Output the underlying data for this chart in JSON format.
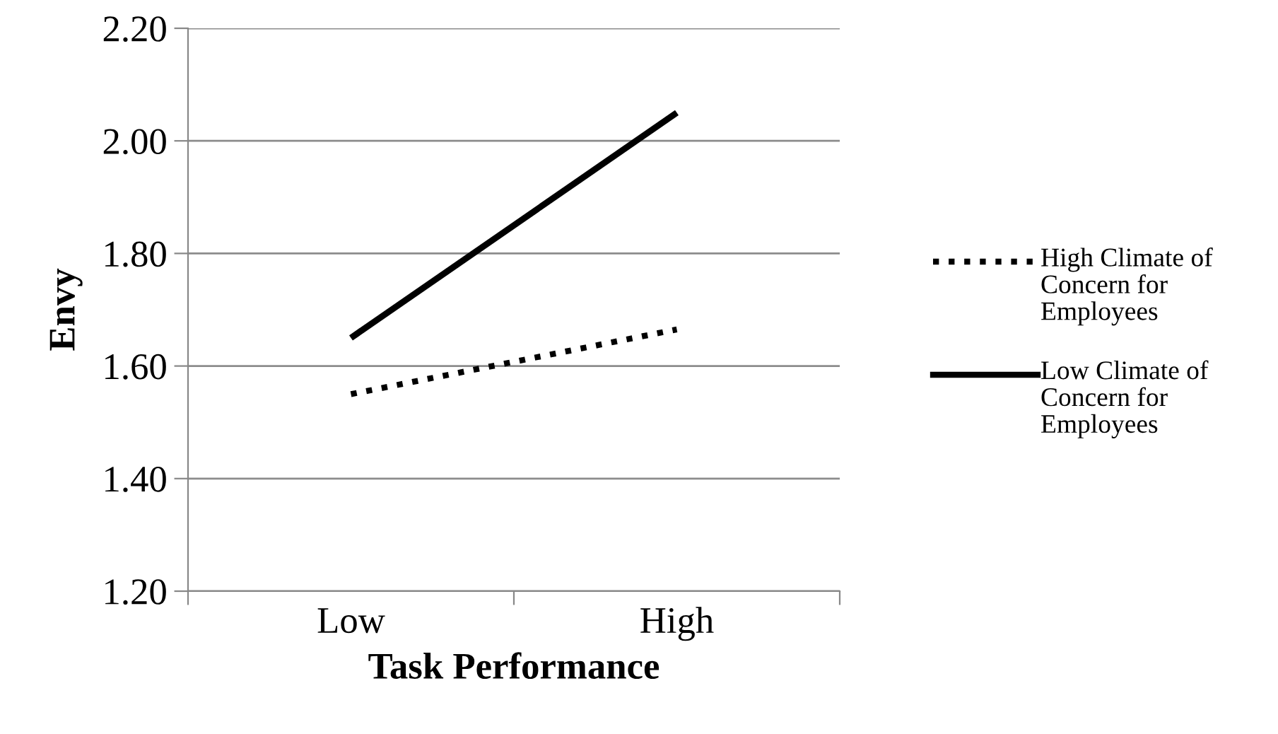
{
  "chart_data": {
    "type": "line",
    "xlabel": "Task Performance",
    "ylabel": "Envy",
    "categories": [
      "Low",
      "High"
    ],
    "series": [
      {
        "name": "High Climate of Concern for Employees",
        "color": "#000000",
        "line_style": "dotted",
        "values": [
          1.55,
          1.665
        ]
      },
      {
        "name": "Low Climate of Concern for Employees",
        "color": "#000000",
        "line_style": "solid",
        "values": [
          1.65,
          2.05
        ]
      }
    ],
    "ylim": [
      1.2,
      2.2
    ],
    "yticks": [
      {
        "value": 1.2,
        "label": "1.20"
      },
      {
        "value": 1.4,
        "label": "1.40"
      },
      {
        "value": 1.6,
        "label": "1.60"
      },
      {
        "value": 1.8,
        "label": "1.80"
      },
      {
        "value": 2.0,
        "label": "2.00"
      },
      {
        "value": 2.2,
        "label": "2.20"
      }
    ],
    "grid": "y",
    "legend": "right",
    "marker": "none"
  }
}
